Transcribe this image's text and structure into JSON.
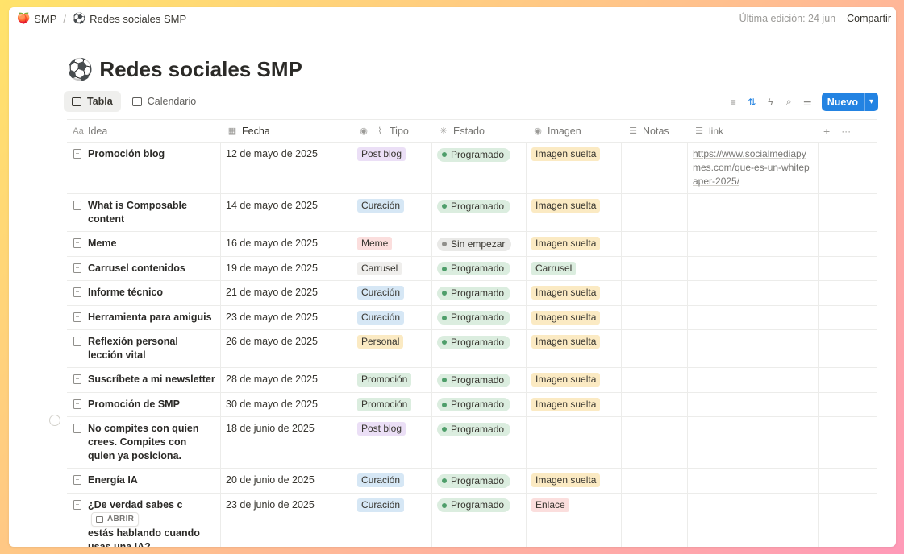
{
  "breadcrumb": {
    "workspace": {
      "icon": "🍑",
      "label": "SMP"
    },
    "separator": "/",
    "page": {
      "icon": "⚽",
      "label": "Redes sociales SMP"
    }
  },
  "topbar": {
    "edited": "Última edición: 24 jun",
    "share": "Compartir"
  },
  "page_title": {
    "emoji": "⚽",
    "text": "Redes sociales SMP"
  },
  "views": [
    {
      "label": "Tabla",
      "active": true
    },
    {
      "label": "Calendario",
      "active": false
    }
  ],
  "toolbar": {
    "new_label": "Nuevo",
    "accent": "#2383e2"
  },
  "columns": {
    "idea": "Idea",
    "fecha": "Fecha",
    "tipo": "Tipo",
    "estado": "Estado",
    "imagen": "Imagen",
    "notas": "Notas",
    "link": "link",
    "add": "+",
    "more": "···"
  },
  "row_action": "ABRIR",
  "tag_colors": {
    "Post blog": "#ebdff6",
    "Curación": "#d6e7f5",
    "Meme": "#fbdedd",
    "Carrusel": "#efeeec",
    "Personal": "#fbeac3",
    "Promoción": "#dbeddf",
    "Imagen suelta": "#fbeac3",
    "Carrusel_img": "#dbeddf",
    "Enlace": "#fbdedd"
  },
  "status_colors": {
    "Programado": {
      "bg": "#dbeddf",
      "dot": "#4e9e6a"
    },
    "Sin empezar": {
      "bg": "#e9e9e7",
      "dot": "#8f8e8a"
    }
  },
  "rows": [
    {
      "idea": "Promoción blog",
      "fecha": "12 de mayo de 2025",
      "tipo": "Post blog",
      "estado": "Programado",
      "imagen": "Imagen suelta",
      "link": "https://www.socialmediapymes.com/que-es-un-whitepaper-2025/"
    },
    {
      "idea": "What is Composable content",
      "fecha": "14 de mayo de 2025",
      "tipo": "Curación",
      "estado": "Programado",
      "imagen": "Imagen suelta",
      "link": ""
    },
    {
      "idea": "Meme",
      "fecha": "16 de mayo de 2025",
      "tipo": "Meme",
      "estado": "Sin empezar",
      "imagen": "Imagen suelta",
      "link": ""
    },
    {
      "idea": "Carrusel contenidos",
      "fecha": "19 de mayo de 2025",
      "tipo": "Carrusel",
      "estado": "Programado",
      "imagen": "Carrusel",
      "link": ""
    },
    {
      "idea": "Informe técnico",
      "fecha": "21 de mayo de 2025",
      "tipo": "Curación",
      "estado": "Programado",
      "imagen": "Imagen suelta",
      "link": ""
    },
    {
      "idea": "Herramienta para amiguis",
      "fecha": "23 de mayo de 2025",
      "tipo": "Curación",
      "estado": "Programado",
      "imagen": "Imagen suelta",
      "link": ""
    },
    {
      "idea": "Reflexión personal lección vital",
      "fecha": "26 de mayo de 2025",
      "tipo": "Personal",
      "estado": "Programado",
      "imagen": "Imagen suelta",
      "link": ""
    },
    {
      "idea": "Suscríbete a mi newsletter",
      "fecha": "28 de mayo de 2025",
      "tipo": "Promoción",
      "estado": "Programado",
      "imagen": "Imagen suelta",
      "link": ""
    },
    {
      "idea": "Promoción de SMP",
      "fecha": "30 de mayo de 2025",
      "tipo": "Promoción",
      "estado": "Programado",
      "imagen": "Imagen suelta",
      "link": ""
    },
    {
      "idea": "No compites con quien crees. Compites con quien ya posiciona.",
      "fecha": "18 de junio de 2025",
      "tipo": "Post blog",
      "estado": "Programado",
      "imagen": "",
      "link": ""
    },
    {
      "idea": "Energía IA",
      "fecha": "20 de junio de 2025",
      "tipo": "Curación",
      "estado": "Programado",
      "imagen": "Imagen suelta",
      "link": ""
    },
    {
      "idea": "¿De verdad sabes con quién estás hablando cuando usas una IA?",
      "idea_display": "¿De verdad sabes c",
      "idea_rest": "estás hablando cuando usas una IA?",
      "fecha": "23 de junio de 2025",
      "tipo": "Curación",
      "estado": "Programado",
      "imagen": "Enlace",
      "link": "",
      "hover": true
    }
  ]
}
